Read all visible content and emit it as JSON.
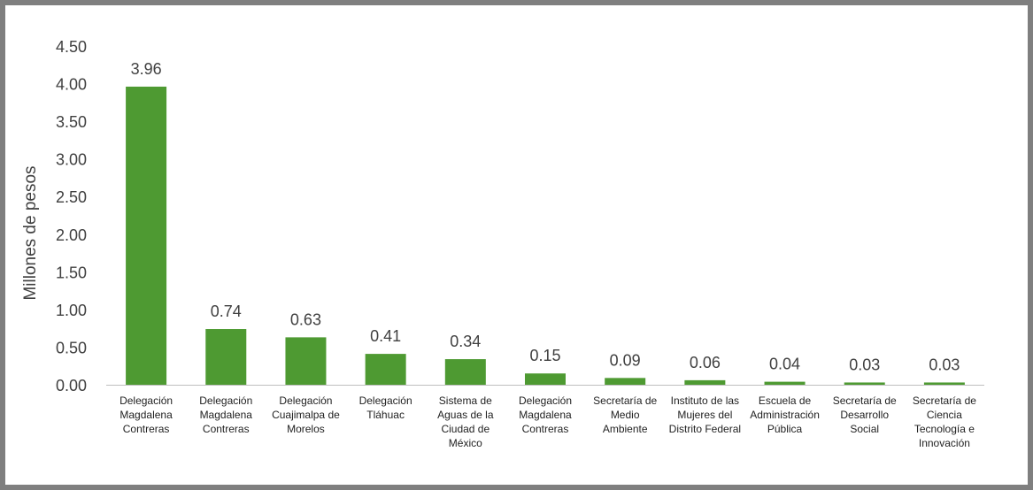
{
  "chart_data": {
    "type": "bar",
    "title": "",
    "xlabel": "",
    "ylabel": "Millones de pesos",
    "ylim": [
      0,
      4.5
    ],
    "yticks": [
      "0.00",
      "0.50",
      "1.00",
      "1.50",
      "2.00",
      "2.50",
      "3.00",
      "3.50",
      "4.00",
      "4.50"
    ],
    "grid": false,
    "bar_color": "#4e9a32",
    "categories": [
      "Delegación\nMagdalena\nContreras",
      "Delegación\nMagdalena\nContreras",
      "Delegación\nCuajimalpa de\nMorelos",
      "Delegación\nTláhuac",
      "Sistema de\nAguas de la\nCiudad de\nMéxico",
      "Delegación\nMagdalena\nContreras",
      "Secretaría de\nMedio\nAmbiente",
      "Instituto de las\nMujeres del\nDistrito Federal",
      "Escuela de\nAdministración\nPública",
      "Secretaría de\nDesarrollo\nSocial",
      "Secretaría de\nCiencia\nTecnología e\nInnovación"
    ],
    "values": [
      3.96,
      0.74,
      0.63,
      0.41,
      0.34,
      0.15,
      0.09,
      0.06,
      0.04,
      0.03,
      0.03
    ],
    "data_labels": [
      "3.96",
      "0.74",
      "0.63",
      "0.41",
      "0.34",
      "0.15",
      "0.09",
      "0.06",
      "0.04",
      "0.03",
      "0.03"
    ]
  }
}
